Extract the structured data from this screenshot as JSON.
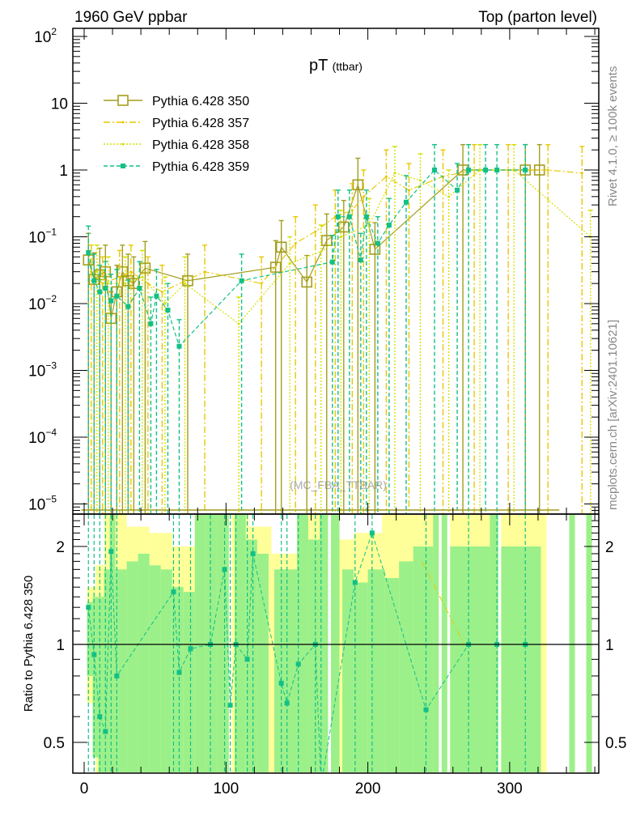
{
  "header": {
    "left": "1960 GeV ppbar",
    "right": "Top (parton level)"
  },
  "side": {
    "rivet": "Rivet 4.1.0, ≥ 100k events",
    "mcplots": "mcplots.cern.ch [arXiv:2401.10621]"
  },
  "watermark": "(MC_FBA_TTBAR)",
  "chart_data": {
    "type": "line",
    "title_main": "pT",
    "title_sub": "(ttbar)",
    "xlabel": "",
    "xlim": [
      -7.5,
      363
    ],
    "x_ticks": [
      "0",
      "100",
      "200",
      "300"
    ],
    "x_tick_values": [
      0,
      100,
      200,
      300
    ],
    "top": {
      "yscale": "log",
      "ylim": [
        7e-06,
        130
      ],
      "y_ticks": [
        {
          "value": 100,
          "base": "10",
          "exp": "2"
        },
        {
          "value": 10,
          "base": "10",
          "exp": ""
        },
        {
          "value": 1,
          "base": "1",
          "exp": ""
        },
        {
          "value": 0.1,
          "base": "10",
          "exp": "−1"
        },
        {
          "value": 0.01,
          "base": "10",
          "exp": "−2"
        },
        {
          "value": 0.001,
          "base": "10",
          "exp": "−3"
        },
        {
          "value": 0.0001,
          "base": "10",
          "exp": "−4"
        },
        {
          "value": 1e-05,
          "base": "10",
          "exp": "−5"
        }
      ],
      "legend_position": "top-left",
      "series": [
        {
          "name": "Pythia 6.428 350",
          "color": "#a39e1e",
          "style": "solid",
          "marker": "open-square",
          "points": [
            [
              3,
              0.045
            ],
            [
              7,
              0.023
            ],
            [
              11,
              0.027
            ],
            [
              15,
              0.03
            ],
            [
              19,
              0.006
            ],
            [
              23,
              0.015
            ],
            [
              27,
              0.03
            ],
            [
              31,
              0.022
            ],
            [
              35,
              0.02
            ],
            [
              43,
              0.034
            ],
            [
              73,
              0.022
            ],
            [
              135,
              0.035
            ],
            [
              139,
              0.07
            ],
            [
              157,
              0.021
            ],
            [
              171,
              0.088
            ],
            [
              183,
              0.14
            ],
            [
              193,
              0.6
            ],
            [
              205,
              0.065
            ],
            [
              267,
              1
            ],
            [
              311,
              1
            ],
            [
              321,
              1
            ]
          ]
        },
        {
          "name": "Pythia 6.428 357",
          "color": "#e8c800",
          "style": "dashdot",
          "marker": "small-dot",
          "points": [
            [
              5,
              0.03
            ],
            [
              13,
              0.02
            ],
            [
              25,
              0.025
            ],
            [
              33,
              0.03
            ],
            [
              45,
              0.02
            ],
            [
              55,
              0.015
            ],
            [
              85,
              0.03
            ],
            [
              125,
              0.02
            ],
            [
              149,
              0.08
            ],
            [
              163,
              0.12
            ],
            [
              177,
              0.2
            ],
            [
              189,
              0.25
            ],
            [
              197,
              0.4
            ],
            [
              213,
              0.8
            ],
            [
              229,
              0.5
            ],
            [
              253,
              0.8
            ],
            [
              275,
              1
            ],
            [
              299,
              1
            ],
            [
              327,
              1
            ],
            [
              351,
              0.9
            ]
          ]
        },
        {
          "name": "Pythia 6.428 358",
          "color": "#d4e000",
          "style": "dotted",
          "marker": "small-dot",
          "points": [
            [
              9,
              0.03
            ],
            [
              17,
              0.02
            ],
            [
              29,
              0.02
            ],
            [
              41,
              0.025
            ],
            [
              57,
              0.01
            ],
            [
              71,
              0.02
            ],
            [
              109,
              0.005
            ],
            [
              145,
              0.04
            ],
            [
              167,
              0.06
            ],
            [
              181,
              0.1
            ],
            [
              201,
              0.15
            ],
            [
              219,
              0.9
            ],
            [
              237,
              0.7
            ],
            [
              257,
              0.4
            ],
            [
              279,
              1
            ],
            [
              303,
              1
            ],
            [
              357,
              0.1
            ]
          ]
        },
        {
          "name": "Pythia 6.428 359",
          "color": "#12c086",
          "style": "dashed",
          "marker": "filled-square",
          "points": [
            [
              3,
              0.058
            ],
            [
              7,
              0.022
            ],
            [
              11,
              0.015
            ],
            [
              15,
              0.017
            ],
            [
              19,
              0.011
            ],
            [
              23,
              0.013
            ],
            [
              31,
              0.009
            ],
            [
              39,
              0.017
            ],
            [
              47,
              0.005
            ],
            [
              51,
              0.013
            ],
            [
              59,
              0.008
            ],
            [
              67,
              0.0023
            ],
            [
              111,
              0.022
            ],
            [
              175,
              0.042
            ],
            [
              179,
              0.2
            ],
            [
              187,
              0.2
            ],
            [
              195,
              0.045
            ],
            [
              199,
              0.2
            ],
            [
              207,
              0.08
            ],
            [
              215,
              0.15
            ],
            [
              227,
              0.33
            ],
            [
              247,
              1
            ],
            [
              263,
              0.5
            ],
            [
              271,
              1
            ],
            [
              283,
              1
            ],
            [
              291,
              1
            ],
            [
              311,
              1
            ]
          ]
        }
      ]
    },
    "ratio": {
      "ylabel": "Ratio to Pythia 6.428 350",
      "yscale": "log",
      "ylim": [
        0.4,
        2.52
      ],
      "y_ticks": [
        "0.5",
        "1",
        "2"
      ],
      "y_tick_values": [
        0.5,
        1,
        2
      ],
      "reference_line": 1,
      "band_yellow": [
        [
          2,
          8,
          0.66,
          1.5
        ],
        [
          8,
          14,
          0.39,
          1.75
        ],
        [
          14,
          22,
          0.39,
          2.52
        ],
        [
          22,
          30,
          0.39,
          2.52
        ],
        [
          30,
          46,
          0.39,
          2.3
        ],
        [
          46,
          62,
          0.39,
          2.2
        ],
        [
          62,
          78,
          0.39,
          2.0
        ],
        [
          78,
          102,
          0.39,
          2.52
        ],
        [
          104,
          116,
          0.39,
          2.52
        ],
        [
          116,
          132,
          0.39,
          2.3
        ],
        [
          132,
          150,
          0.39,
          1.9
        ],
        [
          150,
          172,
          0.39,
          2.52
        ],
        [
          174,
          190,
          0.39,
          2.1
        ],
        [
          190,
          210,
          0.39,
          2.2
        ],
        [
          210,
          236,
          0.39,
          2.52
        ],
        [
          236,
          250,
          0.39,
          2.52
        ],
        [
          258,
          290,
          0.39,
          2.52
        ],
        [
          294,
          326,
          0.39,
          2.52
        ],
        [
          342,
          346,
          0.39,
          2.52
        ],
        [
          354,
          358,
          0.39,
          2.52
        ]
      ],
      "band_green": [
        [
          2,
          6,
          0.8,
          1.35
        ],
        [
          6,
          10,
          0.45,
          1.4
        ],
        [
          10,
          14,
          0.39,
          1.4
        ],
        [
          14,
          18,
          0.39,
          1.7
        ],
        [
          18,
          22,
          0.39,
          2.52
        ],
        [
          22,
          30,
          0.39,
          1.7
        ],
        [
          30,
          38,
          0.39,
          1.8
        ],
        [
          38,
          46,
          0.39,
          1.9
        ],
        [
          46,
          54,
          0.39,
          1.75
        ],
        [
          54,
          62,
          0.39,
          1.7
        ],
        [
          62,
          70,
          0.39,
          1.5
        ],
        [
          70,
          78,
          0.39,
          1.45
        ],
        [
          78,
          86,
          0.39,
          2.52
        ],
        [
          86,
          94,
          0.39,
          2.52
        ],
        [
          94,
          102,
          0.39,
          2.52
        ],
        [
          106,
          114,
          0.39,
          2.52
        ],
        [
          114,
          122,
          0.39,
          2.1
        ],
        [
          122,
          130,
          0.39,
          1.9
        ],
        [
          134,
          150,
          0.39,
          1.7
        ],
        [
          150,
          158,
          0.39,
          2.52
        ],
        [
          158,
          166,
          0.39,
          2.1
        ],
        [
          166,
          172,
          0.39,
          2.52
        ],
        [
          174,
          180,
          0.39,
          2.52
        ],
        [
          182,
          190,
          0.39,
          1.7
        ],
        [
          190,
          200,
          0.39,
          1.55
        ],
        [
          200,
          212,
          0.39,
          1.7
        ],
        [
          212,
          222,
          0.39,
          1.6
        ],
        [
          222,
          232,
          0.39,
          1.8
        ],
        [
          232,
          246,
          0.39,
          2.0
        ],
        [
          246,
          250,
          0.39,
          2.52
        ],
        [
          252,
          256,
          0.39,
          2.52
        ],
        [
          258,
          286,
          0.39,
          2.0
        ],
        [
          286,
          292,
          0.39,
          2.52
        ],
        [
          294,
          322,
          0.39,
          2.0
        ],
        [
          342,
          346,
          0.39,
          2.52
        ],
        [
          354,
          358,
          0.39,
          2.52
        ]
      ],
      "series_359_points": [
        [
          3,
          1.3
        ],
        [
          7,
          0.93
        ],
        [
          11,
          0.6
        ],
        [
          15,
          0.54
        ],
        [
          19,
          1.93
        ],
        [
          23,
          0.8
        ],
        [
          63,
          1.45
        ],
        [
          67,
          0.82
        ],
        [
          75,
          0.97
        ],
        [
          89,
          1.0
        ],
        [
          99,
          1.7
        ],
        [
          103,
          0.65
        ],
        [
          107,
          1.0
        ],
        [
          115,
          0.9
        ],
        [
          119,
          1.9
        ],
        [
          139,
          0.76
        ],
        [
          143,
          0.66
        ],
        [
          151,
          0.87
        ],
        [
          163,
          1.0
        ],
        [
          167,
          0.37
        ],
        [
          191,
          1.55
        ],
        [
          203,
          2.2
        ],
        [
          241,
          0.63
        ],
        [
          271,
          1.0
        ],
        [
          291,
          1.0
        ],
        [
          311,
          1.0
        ]
      ]
    }
  }
}
